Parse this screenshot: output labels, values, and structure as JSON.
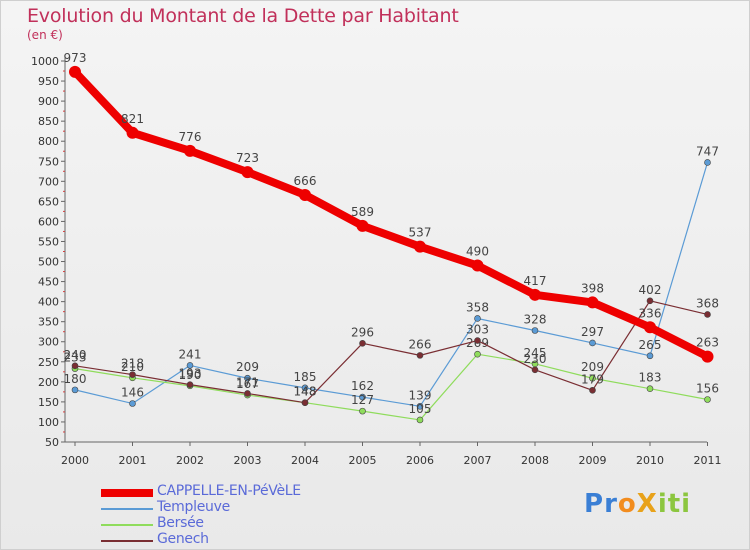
{
  "header": {
    "title": "Evolution du Montant de la Dette par Habitant",
    "unit": "(en €)"
  },
  "logo": {
    "text": "ProXiti",
    "letters": [
      {
        "ch": "P",
        "color": "#3a7fd5"
      },
      {
        "ch": "r",
        "color": "#3a7fd5"
      },
      {
        "ch": "o",
        "color": "#f28c1e"
      },
      {
        "ch": "X",
        "color": "#e8a21a"
      },
      {
        "ch": "i",
        "color": "#8cc63f"
      },
      {
        "ch": "t",
        "color": "#8cc63f"
      },
      {
        "ch": "i",
        "color": "#8cc63f"
      }
    ]
  },
  "chart_data": {
    "type": "line",
    "title": "Evolution du Montant de la Dette par Habitant",
    "ylabel": "(en €)",
    "xlabel": "",
    "ylim": [
      50,
      1000
    ],
    "yticks": [
      50,
      100,
      150,
      200,
      250,
      300,
      350,
      400,
      450,
      500,
      550,
      600,
      650,
      700,
      750,
      800,
      850,
      900,
      950,
      1000
    ],
    "grid": false,
    "legend_position": "bottom-left",
    "x": [
      "2000",
      "2001",
      "2002",
      "2003",
      "2004",
      "2005",
      "2006",
      "2007",
      "2008",
      "2009",
      "2010",
      "2011"
    ],
    "series": [
      {
        "name": "CAPPELLE-EN-PéVèLE",
        "color": "#ee0000",
        "width": 8,
        "marker": 6,
        "values": [
          973,
          821,
          776,
          723,
          666,
          589,
          537,
          490,
          417,
          398,
          336,
          263
        ]
      },
      {
        "name": "Templeuve",
        "color": "#5b9bd5",
        "width": 1.2,
        "marker": 3,
        "values": [
          180,
          146,
          241,
          209,
          185,
          162,
          139,
          358,
          328,
          297,
          265,
          747
        ]
      },
      {
        "name": "Bersée",
        "color": "#8fdc5c",
        "width": 1.2,
        "marker": 3,
        "values": [
          233,
          210,
          190,
          167,
          148,
          127,
          105,
          269,
          245,
          209,
          183,
          156
        ]
      },
      {
        "name": "Genech",
        "color": "#7a2e33",
        "width": 1.2,
        "marker": 3,
        "values": [
          240,
          218,
          193,
          171,
          148,
          296,
          266,
          303,
          230,
          179,
          402,
          368
        ]
      }
    ]
  }
}
